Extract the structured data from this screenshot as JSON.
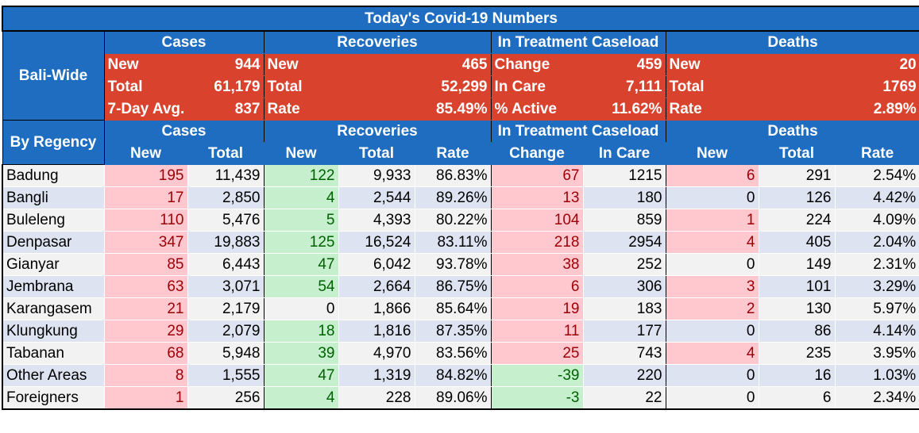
{
  "title": "Today's Covid-19 Numbers",
  "groups": {
    "cases": "Cases",
    "recoveries": "Recoveries",
    "treatment": "In Treatment Caseload",
    "deaths": "Deaths"
  },
  "bali_wide": {
    "label": "Bali-Wide",
    "rows": [
      {
        "c_label": "New",
        "c_value": "944",
        "r_label": "New",
        "r_value": "465",
        "t_label": "Change",
        "t_value": "459",
        "d_label": "New",
        "d_value": "20"
      },
      {
        "c_label": "Total",
        "c_value": "61,179",
        "r_label": "Total",
        "r_value": "52,299",
        "t_label": "In Care",
        "t_value": "7,111",
        "d_label": "Total",
        "d_value": "1769"
      },
      {
        "c_label": "7-Day Avg.",
        "c_value": "837",
        "r_label": "Rate",
        "r_value": "85.49%",
        "t_label": "% Active",
        "t_value": "11.62%",
        "d_label": "Rate",
        "d_value": "2.89%"
      }
    ]
  },
  "by_regency": {
    "label": "By Regency",
    "columns": [
      "New",
      "Total",
      "New",
      "Total",
      "Rate",
      "Change",
      "In Care",
      "New",
      "Total",
      "Rate"
    ],
    "rows": [
      {
        "name": "Badung",
        "c_new": "195",
        "c_total": "11,439",
        "r_new": "122",
        "r_total": "9,933",
        "r_rate": "86.83%",
        "t_change": "67",
        "t_care": "1215",
        "d_new": "6",
        "d_total": "291",
        "d_rate": "2.54%"
      },
      {
        "name": "Bangli",
        "c_new": "17",
        "c_total": "2,850",
        "r_new": "4",
        "r_total": "2,544",
        "r_rate": "89.26%",
        "t_change": "13",
        "t_care": "180",
        "d_new": "0",
        "d_total": "126",
        "d_rate": "4.42%"
      },
      {
        "name": "Buleleng",
        "c_new": "110",
        "c_total": "5,476",
        "r_new": "5",
        "r_total": "4,393",
        "r_rate": "80.22%",
        "t_change": "104",
        "t_care": "859",
        "d_new": "1",
        "d_total": "224",
        "d_rate": "4.09%"
      },
      {
        "name": "Denpasar",
        "c_new": "347",
        "c_total": "19,883",
        "r_new": "125",
        "r_total": "16,524",
        "r_rate": "83.11%",
        "t_change": "218",
        "t_care": "2954",
        "d_new": "4",
        "d_total": "405",
        "d_rate": "2.04%"
      },
      {
        "name": "Gianyar",
        "c_new": "85",
        "c_total": "6,443",
        "r_new": "47",
        "r_total": "6,042",
        "r_rate": "93.78%",
        "t_change": "38",
        "t_care": "252",
        "d_new": "0",
        "d_total": "149",
        "d_rate": "2.31%"
      },
      {
        "name": "Jembrana",
        "c_new": "63",
        "c_total": "3,071",
        "r_new": "54",
        "r_total": "2,664",
        "r_rate": "86.75%",
        "t_change": "6",
        "t_care": "306",
        "d_new": "3",
        "d_total": "101",
        "d_rate": "3.29%"
      },
      {
        "name": "Karangasem",
        "c_new": "21",
        "c_total": "2,179",
        "r_new": "0",
        "r_total": "1,866",
        "r_rate": "85.64%",
        "t_change": "19",
        "t_care": "183",
        "d_new": "2",
        "d_total": "130",
        "d_rate": "5.97%"
      },
      {
        "name": "Klungkung",
        "c_new": "29",
        "c_total": "2,079",
        "r_new": "18",
        "r_total": "1,816",
        "r_rate": "87.35%",
        "t_change": "11",
        "t_care": "177",
        "d_new": "0",
        "d_total": "86",
        "d_rate": "4.14%"
      },
      {
        "name": "Tabanan",
        "c_new": "68",
        "c_total": "5,948",
        "r_new": "39",
        "r_total": "4,970",
        "r_rate": "83.56%",
        "t_change": "25",
        "t_care": "743",
        "d_new": "4",
        "d_total": "235",
        "d_rate": "3.95%"
      },
      {
        "name": "Other Areas",
        "c_new": "8",
        "c_total": "1,555",
        "r_new": "47",
        "r_total": "1,319",
        "r_rate": "84.82%",
        "t_change": "-39",
        "t_care": "220",
        "d_new": "0",
        "d_total": "16",
        "d_rate": "1.03%"
      },
      {
        "name": "Foreigners",
        "c_new": "1",
        "c_total": "256",
        "r_new": "4",
        "r_total": "228",
        "r_rate": "89.06%",
        "t_change": "-3",
        "t_care": "22",
        "d_new": "0",
        "d_total": "6",
        "d_rate": "2.34%"
      }
    ]
  },
  "colors": {
    "header_blue": "#1f6dc0",
    "summary_red": "#d9432e",
    "highlight_pink": "#ffc7ce",
    "highlight_pink_text": "#9c0006",
    "highlight_green": "#c6efce",
    "highlight_green_text": "#006100",
    "row_odd": "#f2f2f2",
    "row_even": "#dde3f0"
  }
}
